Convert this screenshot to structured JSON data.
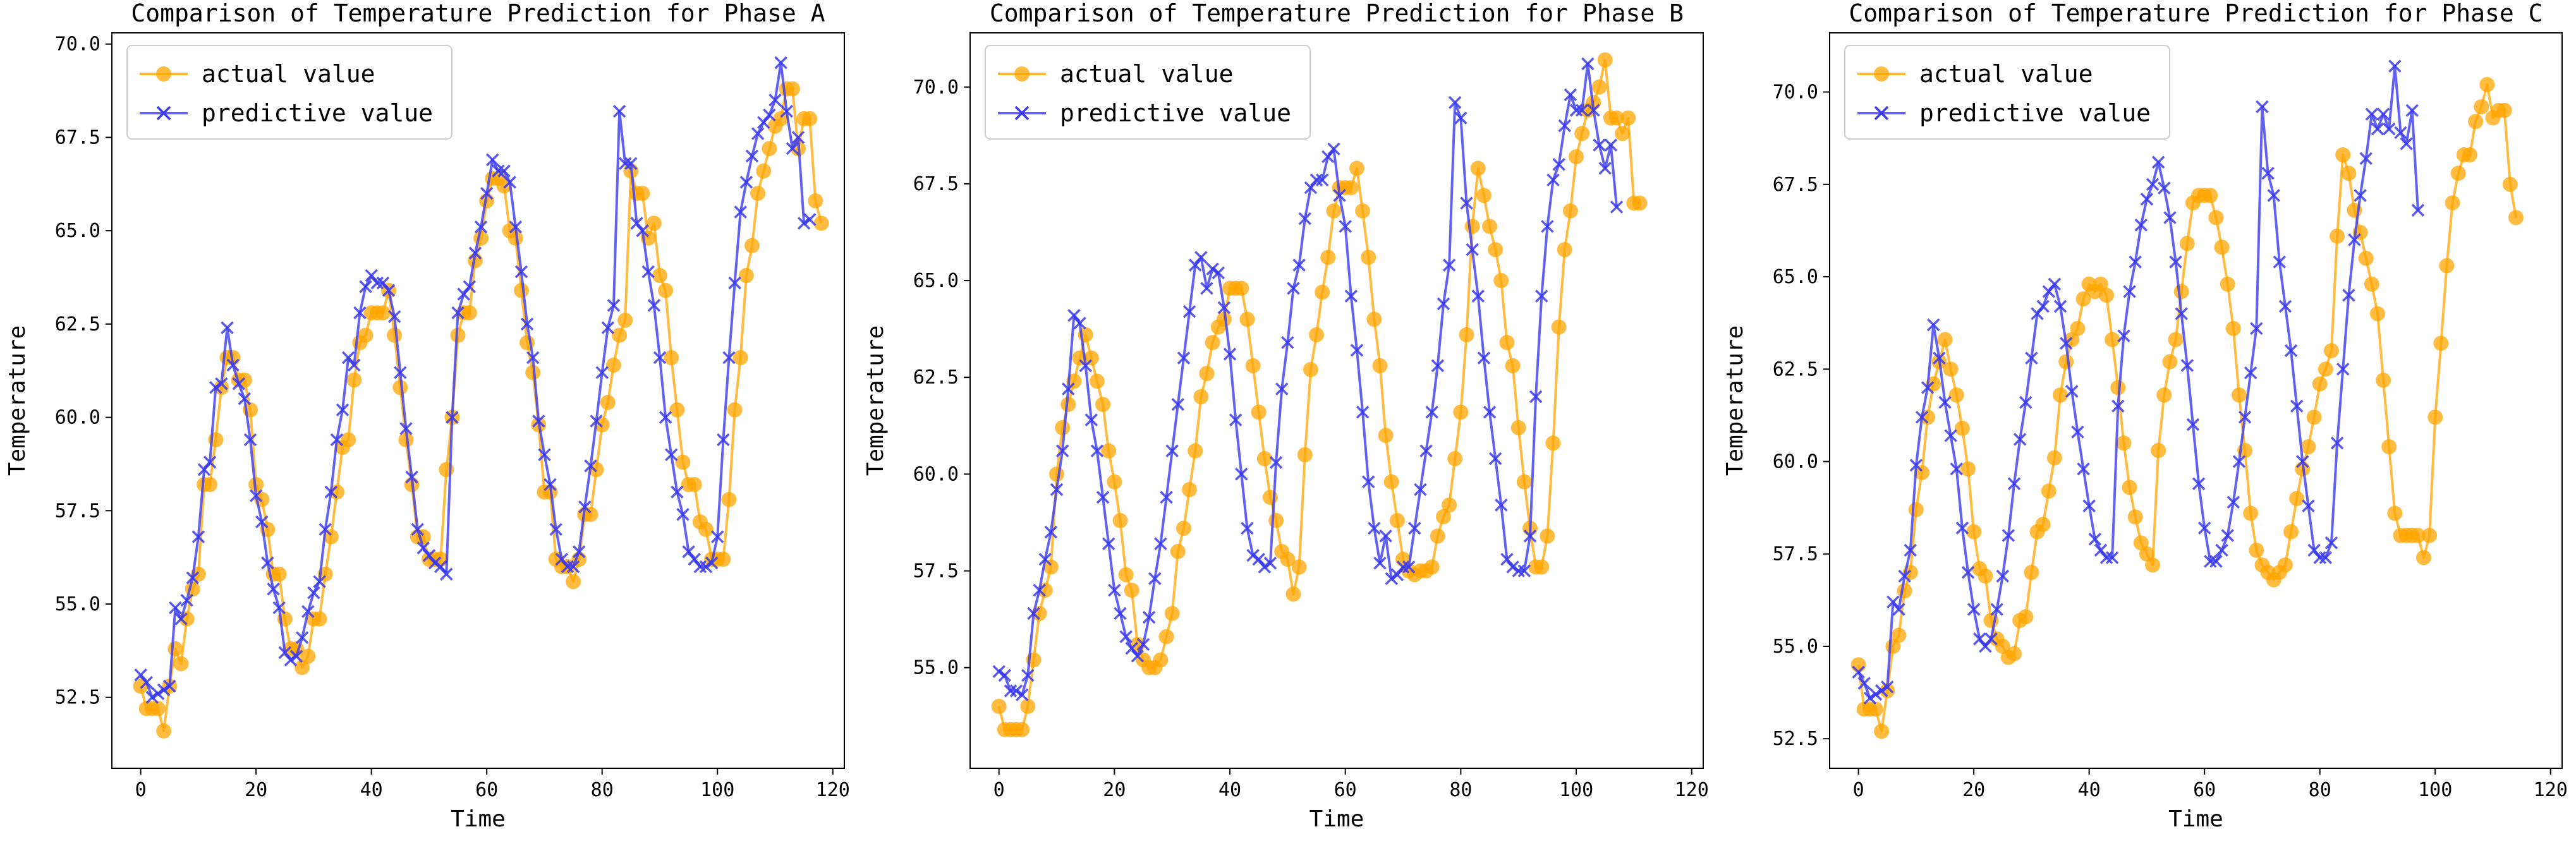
{
  "chart_data": [
    {
      "type": "line",
      "title": "Comparison of Temperature Prediction for Phase A",
      "xlabel": "Time",
      "ylabel": "Temperature",
      "xlim": [
        -5,
        122
      ],
      "ylim": [
        50.6,
        70.3
      ],
      "xticks": [
        0,
        20,
        40,
        60,
        80,
        100,
        120
      ],
      "yticks": [
        52.5,
        55.0,
        57.5,
        60.0,
        62.5,
        65.0,
        67.5,
        70.0
      ],
      "grid": false,
      "legend_position": "top-left",
      "series": [
        {
          "name": "actual value",
          "color": "#FFA500",
          "marker": "circle",
          "values": [
            52.8,
            52.2,
            52.2,
            52.2,
            51.6,
            52.8,
            53.8,
            53.4,
            54.6,
            55.4,
            55.8,
            58.2,
            58.2,
            59.4,
            60.8,
            61.6,
            61.6,
            61.0,
            61.0,
            60.2,
            58.2,
            57.8,
            57.0,
            55.8,
            55.8,
            54.6,
            53.8,
            53.8,
            53.3,
            53.6,
            54.6,
            54.6,
            55.8,
            56.8,
            58.0,
            59.2,
            59.4,
            61.0,
            62.0,
            62.2,
            62.8,
            62.8,
            62.8,
            63.4,
            62.2,
            60.8,
            59.4,
            58.2,
            56.8,
            56.8,
            56.2,
            56.2,
            56.2,
            58.6,
            60.0,
            62.2,
            62.8,
            62.8,
            64.2,
            64.8,
            65.8,
            66.4,
            66.4,
            66.2,
            65.0,
            64.8,
            63.4,
            62.0,
            61.2,
            59.8,
            58.0,
            58.0,
            56.2,
            56.0,
            56.0,
            55.6,
            56.2,
            57.4,
            57.4,
            58.6,
            59.8,
            60.4,
            61.4,
            62.2,
            62.6,
            66.6,
            66.0,
            66.0,
            64.8,
            65.2,
            63.8,
            63.4,
            61.6,
            60.2,
            58.8,
            58.2,
            58.2,
            57.2,
            57.0,
            56.2,
            56.2,
            56.2,
            57.8,
            60.2,
            61.6,
            63.8,
            64.6,
            66.0,
            66.6,
            67.2,
            67.8,
            68.0,
            68.8,
            68.8,
            67.2,
            68.0,
            68.0,
            65.8,
            65.2
          ]
        },
        {
          "name": "predictive value",
          "color": "#3A3AF0",
          "marker": "x",
          "values": [
            53.1,
            52.9,
            52.5,
            52.6,
            52.7,
            52.8,
            54.9,
            54.6,
            55.1,
            55.7,
            56.8,
            58.6,
            58.8,
            60.8,
            60.9,
            62.4,
            61.4,
            60.9,
            60.5,
            59.4,
            57.9,
            57.2,
            56.1,
            55.4,
            54.9,
            53.7,
            53.5,
            53.6,
            54.1,
            54.8,
            55.3,
            55.6,
            57.0,
            58.0,
            59.4,
            60.2,
            61.6,
            61.4,
            62.8,
            63.5,
            63.8,
            63.6,
            63.6,
            63.4,
            62.7,
            61.2,
            59.7,
            58.4,
            57.0,
            56.5,
            56.3,
            56.1,
            56.0,
            55.8,
            60.0,
            62.8,
            63.3,
            63.5,
            64.4,
            65.1,
            66.0,
            66.9,
            66.6,
            66.6,
            66.3,
            65.1,
            63.9,
            62.5,
            61.6,
            59.9,
            59.0,
            58.2,
            57.0,
            56.2,
            56.0,
            56.0,
            56.4,
            57.6,
            58.7,
            59.9,
            61.2,
            62.4,
            63.0,
            68.2,
            66.8,
            66.8,
            65.2,
            65.0,
            63.9,
            63.0,
            61.6,
            60.0,
            59.0,
            58.0,
            57.4,
            56.4,
            56.2,
            56.0,
            56.0,
            56.1,
            56.8,
            59.4,
            61.6,
            63.6,
            65.5,
            66.3,
            67.0,
            67.6,
            67.9,
            68.1,
            68.5,
            69.5,
            68.2,
            67.2,
            67.5,
            65.2,
            65.3
          ]
        }
      ]
    },
    {
      "type": "line",
      "title": "Comparison of Temperature Prediction for Phase B",
      "xlabel": "Time",
      "ylabel": "Temperature",
      "xlim": [
        -5,
        122
      ],
      "ylim": [
        52.4,
        71.4
      ],
      "xticks": [
        0,
        20,
        40,
        60,
        80,
        100,
        120
      ],
      "yticks": [
        55.0,
        57.5,
        60.0,
        62.5,
        65.0,
        67.5,
        70.0
      ],
      "grid": false,
      "legend_position": "top-left",
      "series": [
        {
          "name": "actual value",
          "color": "#FFA500",
          "marker": "circle",
          "values": [
            54.0,
            53.4,
            53.4,
            53.4,
            53.4,
            54.0,
            55.2,
            56.4,
            57.0,
            57.6,
            60.0,
            61.2,
            61.8,
            62.4,
            63.0,
            63.6,
            63.0,
            62.4,
            61.8,
            60.6,
            59.8,
            58.8,
            57.4,
            57.0,
            55.6,
            55.2,
            55.0,
            55.0,
            55.2,
            55.8,
            56.4,
            58.0,
            58.6,
            59.6,
            60.6,
            62.0,
            62.6,
            63.4,
            63.8,
            64.0,
            64.8,
            64.8,
            64.8,
            64.0,
            62.8,
            61.6,
            60.4,
            59.4,
            58.8,
            58.0,
            57.8,
            56.9,
            57.6,
            60.5,
            62.7,
            63.6,
            64.7,
            65.6,
            66.8,
            67.4,
            67.4,
            67.4,
            67.9,
            66.8,
            65.6,
            64.0,
            62.8,
            61.0,
            59.8,
            58.8,
            57.8,
            57.5,
            57.4,
            57.5,
            57.5,
            57.6,
            58.4,
            58.9,
            59.2,
            60.4,
            61.6,
            63.6,
            66.4,
            67.9,
            67.2,
            66.4,
            65.8,
            65.0,
            63.4,
            62.8,
            61.2,
            59.8,
            58.6,
            57.6,
            57.6,
            58.4,
            60.8,
            63.8,
            65.8,
            66.8,
            68.2,
            68.8,
            69.4,
            69.6,
            70.0,
            70.7,
            69.2,
            69.2,
            68.8,
            69.2,
            67.0,
            67.0
          ]
        },
        {
          "name": "predictive value",
          "color": "#3A3AF0",
          "marker": "x",
          "values": [
            54.9,
            54.8,
            54.4,
            54.4,
            54.3,
            54.8,
            56.4,
            57.0,
            57.8,
            58.5,
            59.6,
            60.6,
            62.2,
            64.1,
            63.9,
            62.8,
            61.4,
            60.6,
            59.4,
            58.2,
            57.0,
            56.4,
            55.8,
            55.5,
            55.3,
            55.6,
            56.3,
            57.3,
            58.2,
            59.4,
            60.6,
            61.8,
            63.0,
            64.2,
            65.4,
            65.6,
            64.8,
            65.3,
            65.2,
            64.3,
            63.1,
            61.4,
            60.0,
            58.6,
            57.9,
            57.8,
            57.6,
            57.7,
            60.3,
            62.2,
            63.4,
            64.8,
            65.4,
            66.6,
            67.4,
            67.6,
            67.6,
            68.2,
            68.4,
            67.2,
            66.4,
            64.6,
            63.2,
            61.6,
            59.8,
            58.6,
            57.7,
            58.4,
            57.3,
            57.4,
            57.6,
            57.6,
            58.6,
            59.6,
            60.6,
            61.6,
            62.8,
            64.4,
            65.4,
            69.6,
            69.2,
            67.0,
            65.8,
            64.6,
            63.0,
            61.6,
            60.4,
            59.2,
            57.8,
            57.6,
            57.5,
            57.5,
            58.4,
            62.0,
            64.6,
            66.4,
            67.6,
            68.0,
            69.0,
            69.8,
            69.4,
            69.4,
            70.6,
            69.4,
            68.5,
            67.9,
            68.5,
            66.9
          ]
        }
      ]
    },
    {
      "type": "line",
      "title": "Comparison of Temperature Prediction for Phase C",
      "xlabel": "Time",
      "ylabel": "Temperature",
      "xlim": [
        -5,
        122
      ],
      "ylim": [
        51.7,
        71.6
      ],
      "xticks": [
        0,
        20,
        40,
        60,
        80,
        100,
        120
      ],
      "yticks": [
        52.5,
        55.0,
        57.5,
        60.0,
        62.5,
        65.0,
        67.5,
        70.0
      ],
      "grid": false,
      "legend_position": "top-left",
      "series": [
        {
          "name": "actual value",
          "color": "#FFA500",
          "marker": "circle",
          "values": [
            54.5,
            53.3,
            53.3,
            53.3,
            52.7,
            53.8,
            55.0,
            55.3,
            56.5,
            57.0,
            58.7,
            59.7,
            61.2,
            62.1,
            62.7,
            63.3,
            62.5,
            61.8,
            60.9,
            59.8,
            58.1,
            57.1,
            56.9,
            55.7,
            55.2,
            55.0,
            54.7,
            54.8,
            55.7,
            55.8,
            57.0,
            58.1,
            58.3,
            59.2,
            60.1,
            61.8,
            62.7,
            63.3,
            63.6,
            64.4,
            64.8,
            64.6,
            64.8,
            64.5,
            63.3,
            62.0,
            60.5,
            59.3,
            58.5,
            57.8,
            57.5,
            57.2,
            60.3,
            61.8,
            62.7,
            63.3,
            64.6,
            65.9,
            67.0,
            67.2,
            67.2,
            67.2,
            66.6,
            65.8,
            64.8,
            63.6,
            61.8,
            60.3,
            58.6,
            57.6,
            57.2,
            57.0,
            56.8,
            57.0,
            57.2,
            58.1,
            59.0,
            59.8,
            60.4,
            61.2,
            62.1,
            62.5,
            63.0,
            66.1,
            68.3,
            67.8,
            66.8,
            66.2,
            65.5,
            64.8,
            64.0,
            62.2,
            60.4,
            58.6,
            58.0,
            58.0,
            58.0,
            58.0,
            57.4,
            58.0,
            61.2,
            63.2,
            65.3,
            67.0,
            67.8,
            68.3,
            68.3,
            69.2,
            69.6,
            70.2,
            69.3,
            69.5,
            69.5,
            67.5,
            66.6
          ]
        },
        {
          "name": "predictive value",
          "color": "#3A3AF0",
          "marker": "x",
          "values": [
            54.3,
            54.0,
            53.6,
            53.7,
            53.8,
            53.9,
            56.2,
            56.0,
            56.9,
            57.6,
            59.9,
            61.2,
            62.0,
            63.7,
            62.8,
            61.6,
            60.7,
            59.8,
            58.2,
            57.0,
            56.0,
            55.2,
            55.0,
            55.2,
            56.0,
            56.9,
            58.0,
            59.4,
            60.6,
            61.6,
            62.8,
            64.0,
            64.2,
            64.6,
            64.8,
            64.2,
            63.2,
            61.9,
            60.8,
            59.8,
            58.8,
            57.9,
            57.6,
            57.4,
            57.4,
            61.5,
            63.4,
            64.6,
            65.4,
            66.4,
            67.1,
            67.5,
            68.1,
            67.4,
            66.6,
            65.4,
            64.0,
            62.6,
            61.0,
            59.4,
            58.2,
            57.3,
            57.3,
            57.6,
            58.0,
            58.9,
            60.0,
            61.2,
            62.4,
            63.6,
            69.6,
            67.8,
            67.2,
            65.4,
            64.2,
            63.0,
            61.5,
            60.0,
            58.8,
            57.6,
            57.4,
            57.4,
            57.8,
            60.5,
            62.5,
            64.5,
            66.0,
            67.2,
            68.2,
            69.4,
            69.0,
            69.4,
            69.0,
            70.7,
            68.9,
            68.6,
            69.5,
            66.8
          ]
        }
      ]
    }
  ]
}
